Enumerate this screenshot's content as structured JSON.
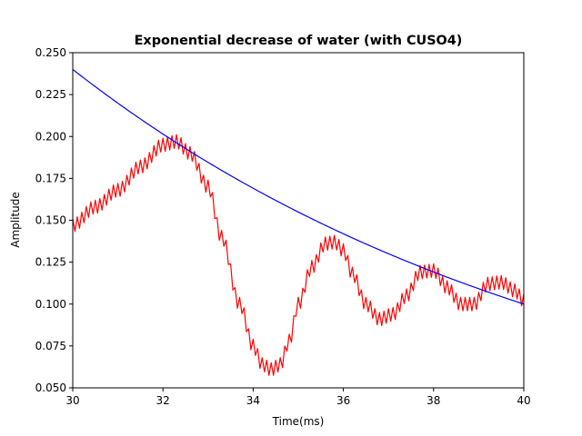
{
  "chart_data": {
    "type": "line",
    "title": "Exponential decrease of water (with CUSO4)",
    "xlabel": "Time(ms)",
    "ylabel": "Amplitude",
    "xlim": [
      30,
      40
    ],
    "ylim": [
      0.05,
      0.25
    ],
    "xticks": [
      30,
      32,
      34,
      36,
      38,
      40
    ],
    "xtick_labels": [
      "30",
      "32",
      "34",
      "36",
      "38",
      "40"
    ],
    "yticks": [
      0.05,
      0.075,
      0.1,
      0.125,
      0.15,
      0.175,
      0.2,
      0.225,
      0.25
    ],
    "ytick_labels": [
      "0.050",
      "0.075",
      "0.100",
      "0.125",
      "0.150",
      "0.175",
      "0.200",
      "0.225",
      "0.250"
    ],
    "grid": false,
    "legend": "none",
    "series": [
      {
        "color": "#ff0000",
        "envelope_x": [
          30,
          30.5,
          31,
          31.5,
          32,
          32.3,
          32.6,
          33,
          33.3,
          33.7,
          34,
          34.2,
          34.4,
          34.6,
          34.8,
          35,
          35.3,
          35.6,
          35.8,
          36,
          36.2,
          36.5,
          36.8,
          37.1,
          37.4,
          37.7,
          38,
          38.3,
          38.6,
          38.9,
          39.2,
          39.5,
          39.8,
          40
        ],
        "envelope_y": [
          0.147,
          0.158,
          0.168,
          0.182,
          0.195,
          0.197,
          0.19,
          0.17,
          0.14,
          0.1,
          0.075,
          0.064,
          0.061,
          0.064,
          0.078,
          0.1,
          0.122,
          0.136,
          0.137,
          0.132,
          0.118,
          0.1,
          0.091,
          0.094,
          0.105,
          0.119,
          0.12,
          0.11,
          0.1,
          0.1,
          0.112,
          0.113,
          0.108,
          0.102
        ],
        "ripple_amplitude": 0.004,
        "ripple_period_ms": 0.1
      },
      {
        "color": "#0000ff",
        "function": "exponential",
        "y_at_x_min": 0.24,
        "y_at_x_max": 0.1
      }
    ]
  }
}
